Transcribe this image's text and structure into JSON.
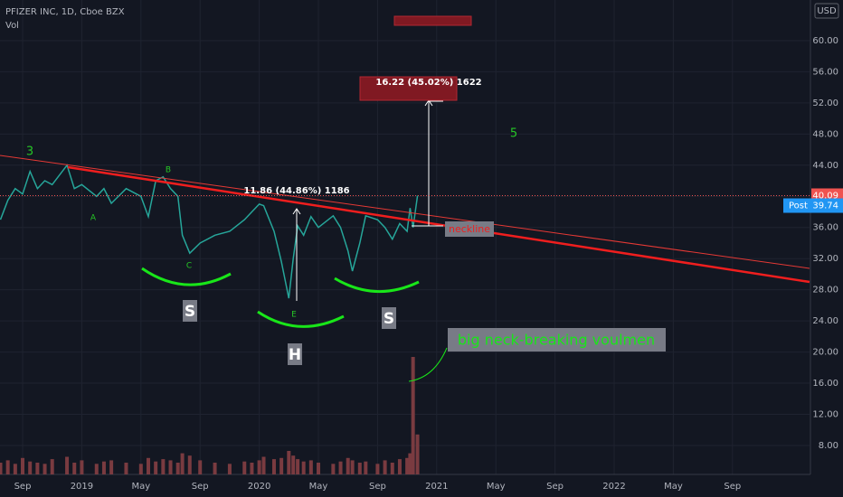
{
  "header": {
    "symbol": "PFIZER INC, 1D, Cboe BZX",
    "volume_label": "Vol",
    "currency": "USD"
  },
  "annotations": {
    "wave_3": "3",
    "wave_a": "A",
    "wave_b": "B",
    "wave_c": "C",
    "wave_e": "E",
    "wave_5": "5",
    "left_shoulder": "S",
    "head": "H",
    "right_shoulder": "S",
    "measure_1": "11.86 (44.86%) 1186",
    "measure_2": "16.22 (45.02%) 1622",
    "neckline": "neckline",
    "volume_note": "big neck-breaking voulmen"
  },
  "chart_data": {
    "type": "line",
    "color": "#26a69a",
    "volume_color": "#7a3b40",
    "x": [
      -1.5,
      -1,
      -0.5,
      0,
      0.5,
      1,
      1.5,
      2,
      3,
      3.5,
      4,
      5,
      5.5,
      6,
      7,
      8,
      8.5,
      9,
      9.5,
      10,
      10.5,
      10.8,
      11.3,
      12,
      13,
      14,
      15,
      15.5,
      16,
      16.3,
      17,
      17.5,
      18,
      18.3,
      18.6,
      19,
      19.5,
      20,
      21,
      21.5,
      22,
      22.3,
      22.8,
      23.2,
      24,
      24.5,
      25,
      25.5,
      26,
      26.2,
      26.4,
      26.7
    ],
    "values": [
      37,
      39.5,
      41,
      40.3,
      43.2,
      41,
      42,
      41.5,
      44,
      41,
      41.5,
      40,
      41,
      39.1,
      41,
      40,
      37.4,
      42,
      42.5,
      41,
      40,
      35,
      32.7,
      34,
      35,
      35.5,
      37,
      38,
      39,
      38.8,
      35.5,
      31.6,
      26.9,
      32,
      36.2,
      35,
      37.4,
      36,
      37.5,
      36,
      33,
      30.4,
      34,
      37.5,
      37,
      36,
      34.5,
      36.5,
      35.5,
      38.5,
      36,
      40.09
    ],
    "volume": [
      10,
      12,
      9,
      14,
      11,
      10,
      9,
      13,
      15,
      10,
      12,
      9,
      11,
      12,
      10,
      9,
      14,
      11,
      13,
      12,
      10,
      18,
      16,
      12,
      10,
      9,
      11,
      10,
      12,
      15,
      13,
      14,
      20,
      16,
      13,
      11,
      12,
      10,
      9,
      11,
      14,
      12,
      10,
      11,
      9,
      12,
      10,
      13,
      14,
      18,
      100,
      34
    ],
    "xlim": [
      -1.53,
      53.21
    ],
    "ylim": [
      4.28,
      65.22
    ],
    "y2lim": [
      0,
      100
    ],
    "xticks": [
      {
        "value": 0,
        "label": "Sep"
      },
      {
        "value": 4,
        "label": "2019"
      },
      {
        "value": 8,
        "label": "May"
      },
      {
        "value": 12,
        "label": "Sep"
      },
      {
        "value": 16,
        "label": "2020"
      },
      {
        "value": 20,
        "label": "May"
      },
      {
        "value": 24,
        "label": "Sep"
      },
      {
        "value": 28,
        "label": "2021"
      },
      {
        "value": 32,
        "label": "May"
      },
      {
        "value": 36,
        "label": "Sep"
      },
      {
        "value": 40,
        "label": "2022"
      },
      {
        "value": 44,
        "label": "May"
      },
      {
        "value": 48,
        "label": "Sep"
      }
    ],
    "yticks": [
      {
        "value": 8,
        "label": "8.00"
      },
      {
        "value": 12,
        "label": "12.00"
      },
      {
        "value": 16,
        "label": "16.00"
      },
      {
        "value": 20,
        "label": "20.00"
      },
      {
        "value": 24,
        "label": "24.00"
      },
      {
        "value": 28,
        "label": "28.00"
      },
      {
        "value": 32,
        "label": "32.00"
      },
      {
        "value": 36,
        "label": "36.00"
      },
      {
        "value": 40,
        "label": "40.00"
      },
      {
        "value": 44,
        "label": "44.00"
      },
      {
        "value": 48,
        "label": "48.00"
      },
      {
        "value": 52,
        "label": "52.00"
      },
      {
        "value": 56,
        "label": "56.00"
      },
      {
        "value": 60,
        "label": "60.00"
      }
    ],
    "grid": true,
    "last_price": 40.09,
    "post_label": "Post",
    "post_price": 39.74
  }
}
